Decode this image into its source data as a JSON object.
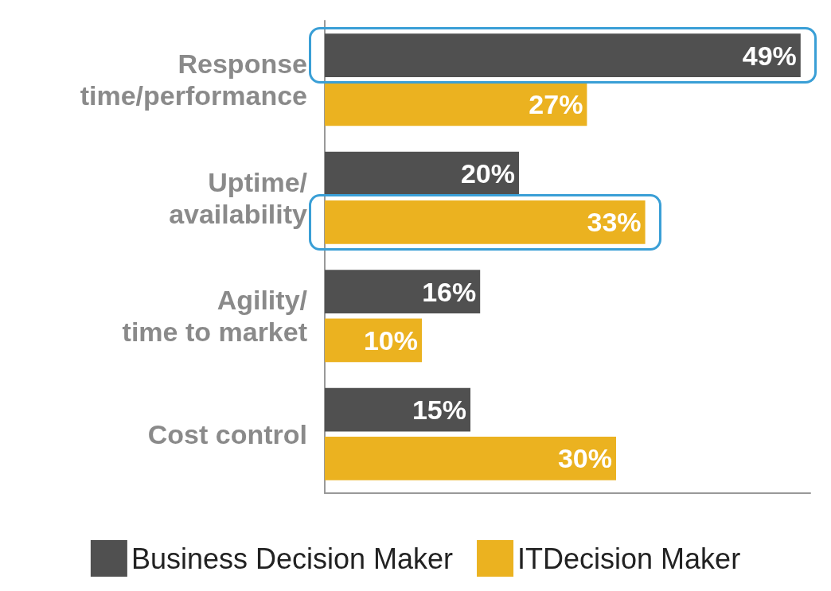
{
  "chart_data": {
    "type": "bar",
    "orientation": "horizontal",
    "categories": [
      "Response\ntime/performance",
      "Uptime/\navailability",
      "Agility/\ntime to market",
      "Cost control"
    ],
    "series": [
      {
        "name": "Business Decision Maker",
        "color": "#505050",
        "values": [
          49,
          20,
          16,
          15
        ],
        "value_labels": [
          "49%",
          "20%",
          "16%",
          "15%"
        ]
      },
      {
        "name": "ITDecision Maker",
        "color": "#ebb220",
        "values": [
          27,
          33,
          10,
          30
        ],
        "value_labels": [
          "27%",
          "33%",
          "10%",
          "30%"
        ]
      }
    ],
    "grid": false,
    "legend": "bottom"
  }
}
